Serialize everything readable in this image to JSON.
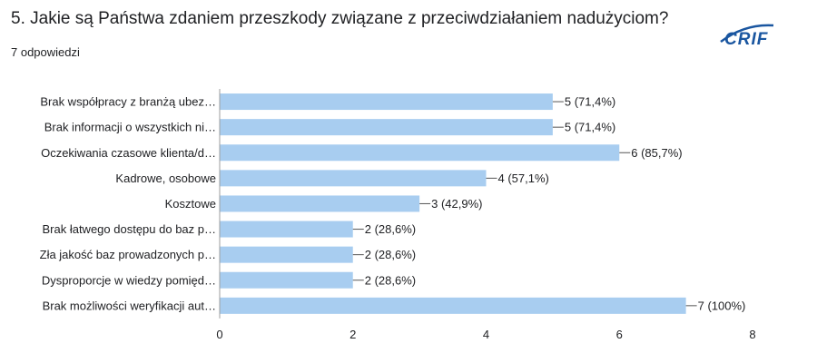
{
  "question": {
    "title": "5. Jakie są Państwa zdaniem przeszkody związane z przeciwdziałaniem nadużyciom?",
    "responses": "7 odpowiedzi"
  },
  "logo": {
    "text": "CRIF",
    "color": "#1a56a0"
  },
  "colors": {
    "bar": "#a8cdf0",
    "axis": "#9e9e9e",
    "text": "#202124"
  },
  "chart_data": {
    "type": "bar",
    "orientation": "horizontal",
    "categories": [
      "Brak współpracy z branżą ubez…",
      "Brak informacji o wszystkich ni…",
      "Oczekiwania czasowe klienta/d…",
      "Kadrowe, osobowe",
      "Kosztowe",
      "Brak łatwego dostępu do baz p…",
      "Zła jakość baz prowadzonych p…",
      "Dysproporcje w wiedzy pomięd…",
      "Brak możliwości weryfikacji aut…"
    ],
    "values": [
      5,
      5,
      6,
      4,
      3,
      2,
      2,
      2,
      7
    ],
    "data_labels": [
      "5 (71,4%)",
      "5 (71,4%)",
      "6 (85,7%)",
      "4 (57,1%)",
      "3 (42,9%)",
      "2 (28,6%)",
      "2 (28,6%)",
      "2 (28,6%)",
      "7 (100%)"
    ],
    "xlim": [
      0,
      8
    ],
    "xticks": [
      "0",
      "2",
      "4",
      "6",
      "8"
    ],
    "grid": false,
    "title": "",
    "xlabel": "",
    "ylabel": ""
  }
}
